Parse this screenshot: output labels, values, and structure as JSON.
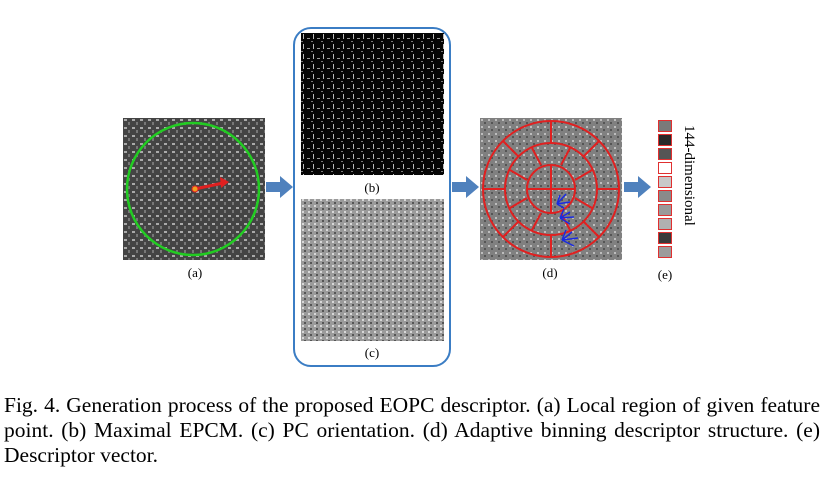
{
  "panels": {
    "a": {
      "label": "(a)"
    },
    "b": {
      "label": "(b)"
    },
    "c": {
      "label": "(c)"
    },
    "d": {
      "label": "(d)"
    },
    "e": {
      "label": "(e)",
      "vector_label": "144-dimensional",
      "cells": [
        "#7a7a7a",
        "#2a2a2a",
        "#555555",
        "#ffffff",
        "#c8c8c8",
        "#8a8a8a",
        "#9a9a9a",
        "#b0b0b0",
        "#3a3a3a",
        "#9c9c9c"
      ]
    }
  },
  "caption": {
    "text": "Fig. 4.   Generation process of the proposed EOPC descriptor. (a) Local region of given feature point. (b) Maximal EPCM. (c) PC orientation. (d) Adaptive binning descriptor structure. (e) Descriptor vector."
  },
  "colors": {
    "arrow": "#4f81bd",
    "frame": "#3b7dc4",
    "circle_green": "#22cc22",
    "bins_red": "#e02020",
    "orientation_blue": "#1a2be0"
  }
}
